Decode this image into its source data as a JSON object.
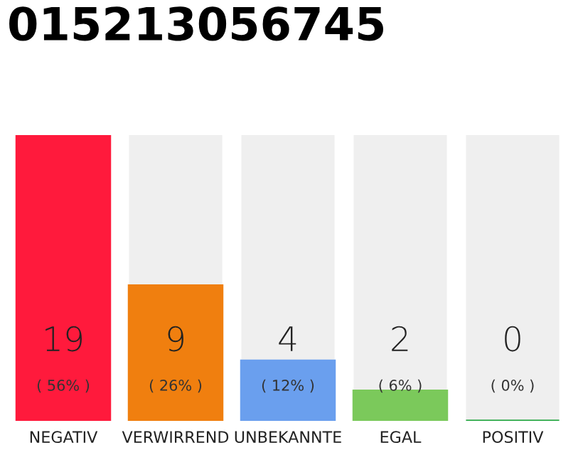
{
  "chart_data": {
    "type": "bar",
    "title": "015213056745",
    "categories": [
      "NEGATIV",
      "VERWIRREND",
      "UNBEKANNTE",
      "EGAL",
      "POSITIV"
    ],
    "values": [
      19,
      9,
      4,
      2,
      0
    ],
    "colors": [
      "#ff1a3c",
      "#f07f0f",
      "#6a9fee",
      "#7bc95b",
      "#2eaa4a"
    ],
    "value_labels": [
      "19",
      "9",
      "4",
      "2",
      "0"
    ],
    "annotations": [
      "( 56% )",
      "( 26% )",
      "( 12% )",
      "( 6% )",
      "( 0% )"
    ],
    "tick_labels": "x",
    "grid": false,
    "legend": false
  }
}
